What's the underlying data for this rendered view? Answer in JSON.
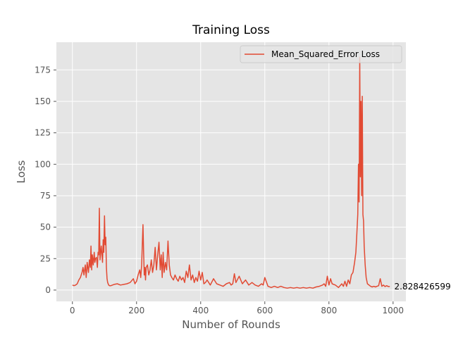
{
  "chart_data": {
    "type": "line",
    "title": "Training Loss",
    "xlabel": "Number of Rounds",
    "ylabel": "Loss",
    "xlim": [
      -50,
      1040
    ],
    "ylim": [
      -9,
      197
    ],
    "xticks": [
      0,
      200,
      400,
      600,
      800,
      1000
    ],
    "yticks": [
      0,
      25,
      50,
      75,
      100,
      125,
      150,
      175
    ],
    "grid": true,
    "legend_position": "top-right",
    "colors": {
      "series": "#E24A33",
      "background": "#E5E5E5",
      "grid": "#FFFFFF",
      "text": "#555555"
    },
    "series": [
      {
        "name": "Mean_Squared_Error Loss",
        "x": [
          0,
          5,
          10,
          15,
          20,
          25,
          30,
          33,
          36,
          40,
          43,
          46,
          50,
          53,
          56,
          58,
          60,
          62,
          65,
          68,
          70,
          72,
          75,
          78,
          80,
          82,
          84,
          86,
          88,
          90,
          92,
          94,
          96,
          98,
          100,
          102,
          104,
          106,
          108,
          110,
          113,
          116,
          120,
          125,
          130,
          140,
          150,
          160,
          170,
          180,
          190,
          195,
          200,
          205,
          210,
          213,
          216,
          220,
          222,
          224,
          226,
          228,
          230,
          234,
          238,
          242,
          246,
          250,
          254,
          258,
          262,
          266,
          270,
          274,
          277,
          280,
          283,
          286,
          290,
          294,
          298,
          302,
          306,
          310,
          315,
          320,
          325,
          330,
          335,
          340,
          345,
          350,
          355,
          360,
          365,
          370,
          375,
          380,
          385,
          390,
          395,
          400,
          405,
          410,
          415,
          420,
          430,
          440,
          450,
          460,
          470,
          480,
          490,
          495,
          500,
          505,
          510,
          520,
          530,
          540,
          550,
          560,
          570,
          580,
          590,
          595,
          600,
          610,
          620,
          630,
          640,
          650,
          660,
          670,
          680,
          690,
          700,
          710,
          720,
          730,
          740,
          750,
          760,
          770,
          780,
          785,
          790,
          795,
          800,
          805,
          810,
          820,
          830,
          840,
          845,
          850,
          855,
          860,
          865,
          870,
          875,
          880,
          884,
          887,
          890,
          892,
          894,
          896,
          898,
          900,
          902,
          904,
          906,
          908,
          910,
          913,
          916,
          920,
          925,
          930,
          935,
          940,
          945,
          950,
          955,
          960,
          965,
          970,
          975,
          980,
          985,
          990
        ],
        "y": [
          4,
          3.5,
          4,
          5,
          8,
          10,
          14,
          18,
          12,
          20,
          10,
          22,
          14,
          24,
          18,
          35,
          16,
          28,
          20,
          30,
          22,
          25,
          26,
          18,
          30,
          28,
          65,
          24,
          30,
          35,
          28,
          22,
          40,
          30,
          59,
          36,
          42,
          18,
          9,
          6,
          4,
          3.5,
          3.5,
          4,
          4.5,
          5,
          4,
          4.5,
          5,
          6,
          9,
          5,
          7,
          12,
          16,
          10,
          20,
          52,
          30,
          12,
          18,
          8,
          18,
          20,
          12,
          16,
          24,
          14,
          20,
          34,
          16,
          28,
          38,
          16,
          28,
          10,
          30,
          14,
          22,
          16,
          39,
          20,
          12,
          10,
          8,
          12,
          9,
          7,
          11,
          8,
          10,
          6,
          15,
          10,
          20,
          8,
          12,
          6,
          10,
          7,
          15,
          8,
          14,
          5,
          6,
          8,
          4,
          9,
          5,
          4,
          3,
          5,
          6,
          4,
          5,
          13,
          6,
          11,
          5,
          8,
          4,
          6,
          4,
          3,
          5,
          4,
          10,
          3,
          2,
          3,
          2,
          3,
          2,
          1.5,
          2,
          1.5,
          2,
          1.5,
          2,
          1.5,
          2,
          1.5,
          2.5,
          3,
          4,
          5,
          3,
          11,
          4,
          9,
          5,
          4,
          2,
          5,
          3,
          7,
          3,
          8,
          5,
          12,
          14,
          22,
          30,
          45,
          60,
          100,
          70,
          185,
          90,
          150,
          75,
          154,
          60,
          55,
          35,
          20,
          10,
          5,
          4,
          3,
          2.5,
          3,
          2.5,
          3,
          3.5,
          9,
          3,
          4,
          2.8,
          3.5,
          2.8,
          2.83
        ]
      }
    ],
    "annotations": [
      {
        "x": 995,
        "y": 2.83,
        "text": "2.828426599"
      }
    ]
  }
}
